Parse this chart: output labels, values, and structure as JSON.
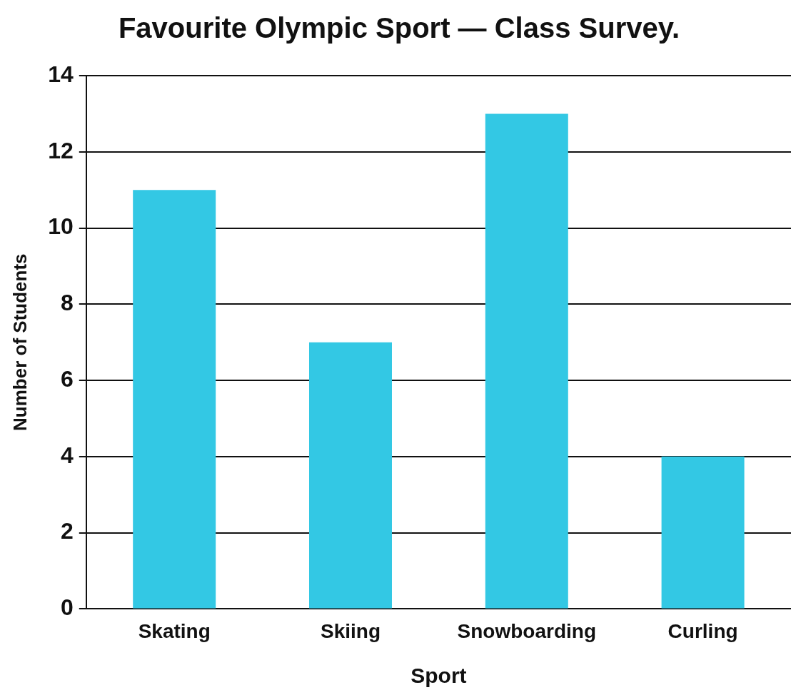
{
  "chart_data": {
    "type": "bar",
    "title": "Favourite Olympic Sport — Class Survey.",
    "xlabel": "Sport",
    "ylabel": "Number of Students",
    "categories": [
      "Skating",
      "Skiing",
      "Snowboarding",
      "Curling"
    ],
    "values": [
      11,
      7,
      13,
      4
    ],
    "color": "#33c8e4",
    "ylim": [
      0,
      14
    ],
    "yticks": [
      0,
      2,
      4,
      6,
      8,
      10,
      12,
      14
    ],
    "grid": "y",
    "legend": false
  }
}
